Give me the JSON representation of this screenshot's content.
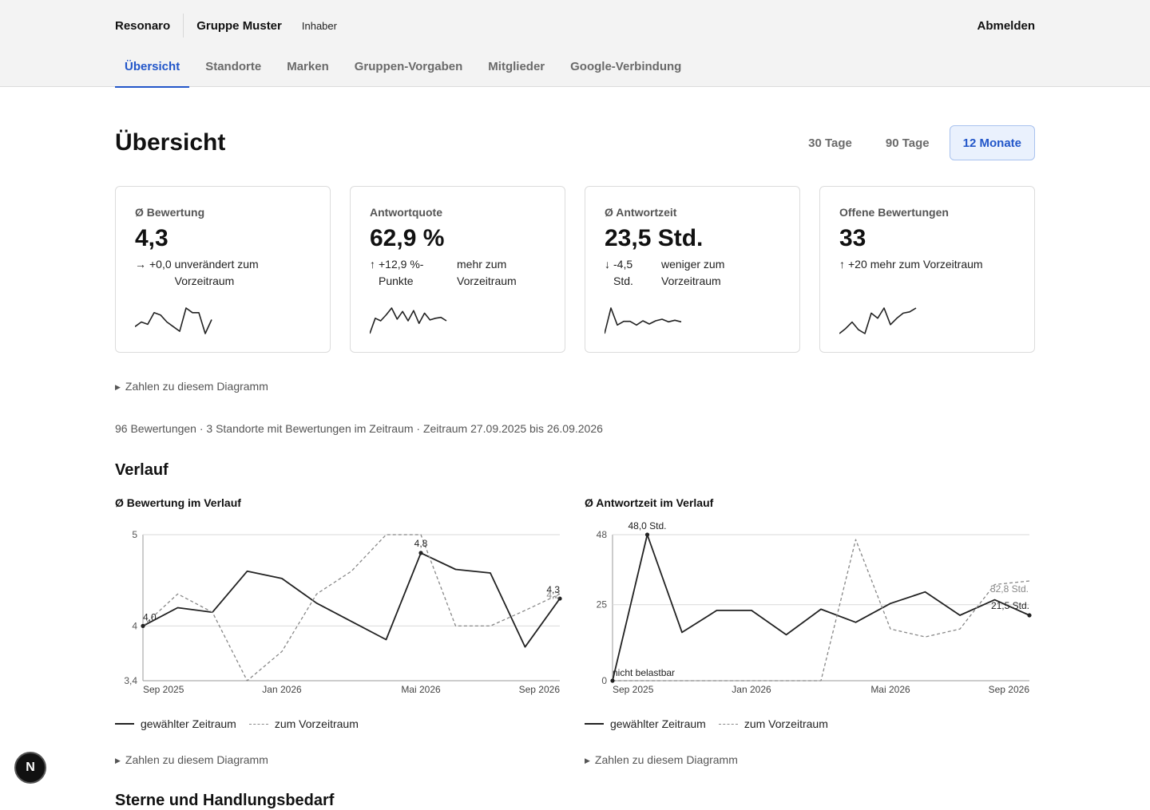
{
  "header": {
    "brand": "Resonaro",
    "group": "Gruppe Muster",
    "role": "Inhaber",
    "logout": "Abmelden"
  },
  "tabs": [
    {
      "label": "Übersicht",
      "active": true
    },
    {
      "label": "Standorte"
    },
    {
      "label": "Marken"
    },
    {
      "label": "Gruppen-Vorgaben"
    },
    {
      "label": "Mitglieder"
    },
    {
      "label": "Google-Verbindung"
    }
  ],
  "page": {
    "title": "Übersicht",
    "ranges": [
      {
        "label": "30 Tage"
      },
      {
        "label": "90 Tage"
      },
      {
        "label": "12 Monate",
        "active": true
      }
    ]
  },
  "kpis": [
    {
      "label": "Ø Bewertung",
      "value": "4,3",
      "arrow": "→",
      "delta": "+0,0",
      "delta_text": "unverändert zum Vorzeitraum",
      "spark": [
        3.9,
        4.1,
        4.0,
        4.5,
        4.4,
        4.1,
        3.9,
        3.7,
        4.7,
        4.5,
        4.5,
        3.6,
        4.2
      ]
    },
    {
      "label": "Antwortquote",
      "value": "62,9 %",
      "arrow": "↑",
      "delta": "+12,9 %-Punkte",
      "delta_text": "mehr zum Vorzeitraum",
      "spark": [
        40,
        58,
        55,
        62,
        70,
        57,
        66,
        55,
        67,
        52,
        64,
        56,
        58,
        59,
        55
      ]
    },
    {
      "label": "Ø Antwortzeit",
      "value": "23,5 Std.",
      "arrow": "↓",
      "delta": "-4,5 Std.",
      "delta_text": "weniger zum Vorzeitraum",
      "spark": [
        0,
        48,
        16,
        23,
        23,
        16,
        24,
        18,
        24,
        27,
        22,
        25,
        22
      ]
    },
    {
      "label": "Offene Bewertungen",
      "value": "33",
      "arrow": "↑",
      "delta": "+20",
      "delta_text": "mehr zum Vorzeitraum",
      "spark": [
        2,
        6,
        11,
        5,
        2,
        18,
        14,
        22,
        9,
        14,
        18,
        19,
        22
      ]
    }
  ],
  "details_label": "Zahlen zu diesem Diagramm",
  "meta": "96 Bewertungen · 3 Standorte mit Bewertungen im Zeitraum · Zeitraum 27.09.2025 bis 26.09.2026",
  "section_title": "Verlauf",
  "legend": {
    "current": "gewählter Zeitraum",
    "previous": "zum Vorzeitraum"
  },
  "next_section_title": "Sterne und Handlungsbedarf",
  "chart_data": [
    {
      "type": "line",
      "title": "Ø Bewertung im Verlauf",
      "x": [
        "Sep 2025",
        "Okt 2025",
        "Nov 2025",
        "Dez 2025",
        "Jan 2026",
        "Feb 2026",
        "Mär 2026",
        "Apr 2026",
        "Mai 2026",
        "Jun 2026",
        "Jul 2026",
        "Aug 2026",
        "Sep 2026"
      ],
      "xticks": [
        "Sep 2025",
        "Jan 2026",
        "Mai 2026",
        "Sep 2026"
      ],
      "yticks": [
        "3,4",
        "4",
        "5"
      ],
      "ylim": [
        3.4,
        5.0
      ],
      "series": [
        {
          "name": "gewählter Zeitraum",
          "style": "solid",
          "values": [
            4.0,
            4.2,
            4.15,
            4.6,
            4.52,
            4.25,
            4.05,
            3.85,
            4.8,
            4.62,
            4.58,
            3.77,
            4.3
          ]
        },
        {
          "name": "zum Vorzeitraum",
          "style": "dashed",
          "values": [
            4.0,
            4.35,
            4.15,
            3.4,
            3.72,
            4.35,
            4.6,
            5.0,
            5.0,
            4.0,
            4.0,
            4.17,
            4.35
          ]
        }
      ],
      "annotations": [
        {
          "label": "4,0"
        },
        {
          "label": "4,8"
        },
        {
          "label": "4,3"
        },
        {
          "label": "4,2"
        }
      ]
    },
    {
      "type": "line",
      "title": "Ø Antwortzeit im Verlauf",
      "x": [
        "Sep 2025",
        "Okt 2025",
        "Nov 2025",
        "Dez 2025",
        "Jan 2026",
        "Feb 2026",
        "Mär 2026",
        "Apr 2026",
        "Mai 2026",
        "Jun 2026",
        "Jul 2026",
        "Aug 2026",
        "Sep 2026"
      ],
      "xticks": [
        "Sep 2025",
        "Jan 2026",
        "Mai 2026",
        "Sep 2026"
      ],
      "yticks": [
        "0",
        "25",
        "48"
      ],
      "ylim": [
        0,
        48
      ],
      "series": [
        {
          "name": "gewählter Zeitraum",
          "style": "solid",
          "values": [
            0,
            48,
            15.9,
            23.1,
            23.1,
            15.1,
            23.5,
            19.2,
            25.4,
            29.2,
            21.5,
            26.6,
            21.5
          ]
        },
        {
          "name": "zum Vorzeitraum",
          "style": "dashed",
          "values": [
            0,
            0,
            0,
            0,
            0,
            0,
            0,
            46.4,
            17.0,
            14.4,
            17.0,
            31.6,
            32.8
          ]
        }
      ],
      "annotations": [
        {
          "label": "48,0 Std."
        },
        {
          "label": "nicht belastbar"
        },
        {
          "label": "32,8 Std."
        },
        {
          "label": "21,5 Std."
        }
      ]
    }
  ]
}
